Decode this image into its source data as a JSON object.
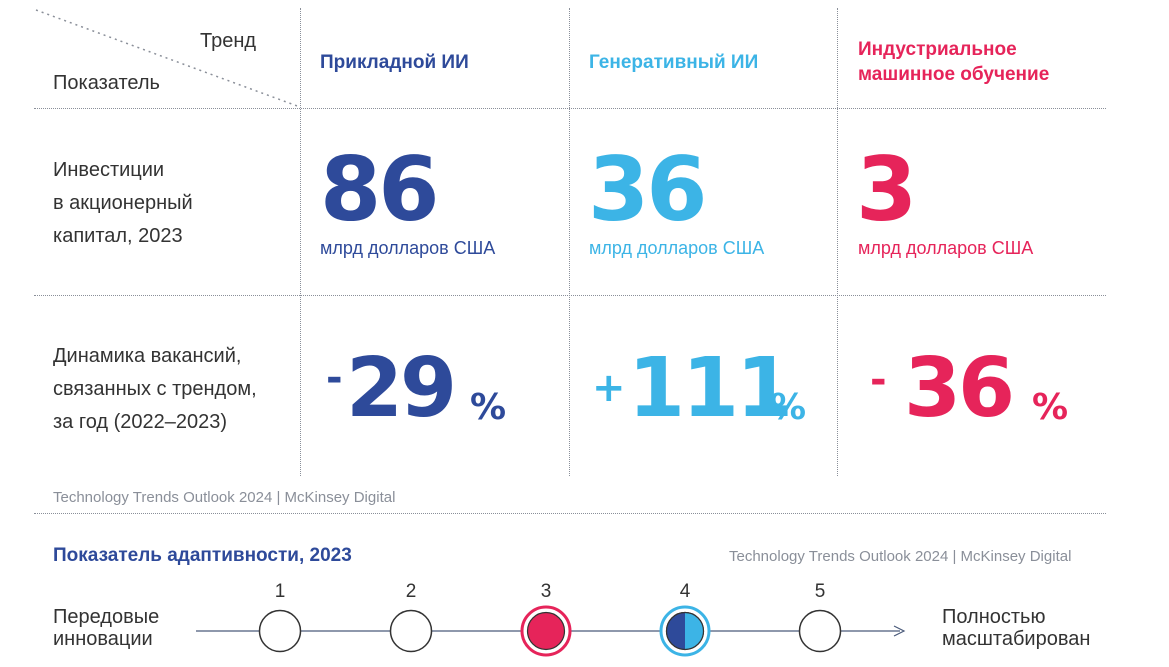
{
  "header": {
    "trend_label": "Тренд",
    "indicator_label": "Показатель"
  },
  "columns": [
    {
      "title": "Прикладной ИИ",
      "color": "#2e4a9a"
    },
    {
      "title": "Генеративный ИИ",
      "color": "#3cb4e6"
    },
    {
      "title_line1": "Индустриальное",
      "title_line2": "машинное обучение",
      "color": "#e6245a"
    }
  ],
  "rows": {
    "investment": {
      "label_line1": "Инвестиции",
      "label_line2": "в акционерный",
      "label_line3": "капитал, 2023",
      "values": [
        "86",
        "36",
        "3"
      ],
      "unit": "млрд долларов США"
    },
    "vacancies": {
      "label_line1": "Динамика вакансий,",
      "label_line2": "связанных с трендом,",
      "label_line3": "за год (2022–2023)",
      "values": [
        {
          "sign": "-",
          "number": "29",
          "percent": "%"
        },
        {
          "sign": "+",
          "number": "111",
          "percent": "%"
        },
        {
          "sign": "-",
          "number": "36",
          "percent": "%"
        }
      ]
    }
  },
  "source": "Technology Trends Outlook 2024 | McKinsey Digital",
  "adaptability": {
    "title": "Показатель адаптивности, 2023",
    "source": "Technology Trends Outlook 2024 | McKinsey Digital",
    "left_label_line1": "Передовые",
    "left_label_line2": "инновации",
    "right_label_line1": "Полностью",
    "right_label_line2": "масштабирован",
    "steps": [
      "1",
      "2",
      "3",
      "4",
      "5"
    ],
    "selected": {
      "3": "#e6245a",
      "4": "#3cb4e6"
    }
  }
}
